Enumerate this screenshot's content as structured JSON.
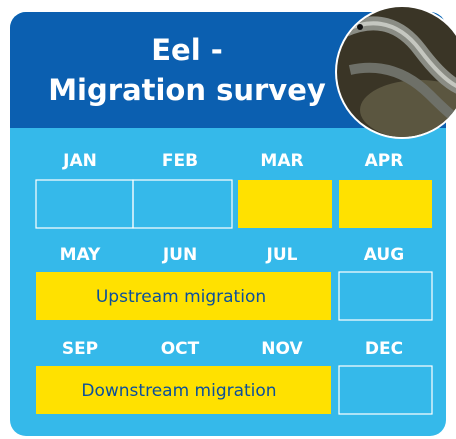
{
  "header": {
    "title_lines": [
      "Eel -",
      "Migration survey"
    ]
  },
  "months": [
    "JAN",
    "FEB",
    "MAR",
    "APR",
    "MAY",
    "JUN",
    "JUL",
    "AUG",
    "SEP",
    "OCT",
    "NOV",
    "DEC"
  ],
  "periods": [
    "Upstream migration",
    "Downstream migration"
  ]
}
